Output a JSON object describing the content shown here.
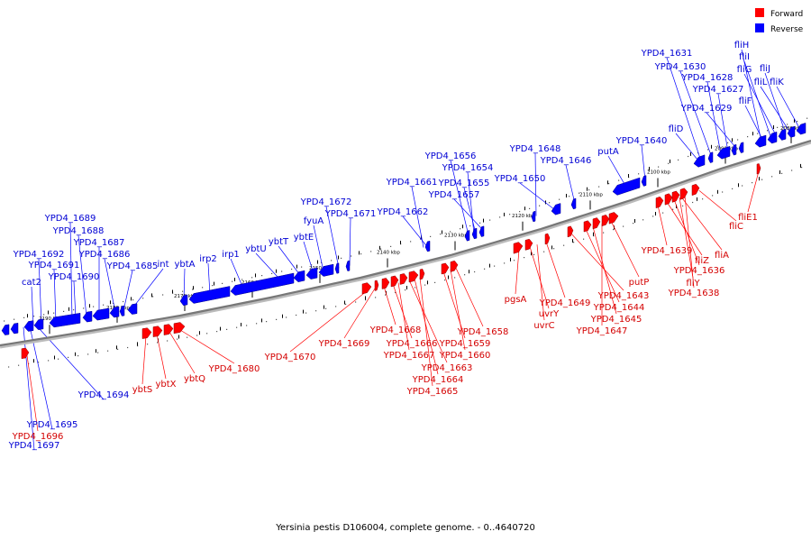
{
  "caption": "Yersinia pestis D106004, complete genome. - 0..4640720",
  "colors": {
    "forward": "#ff0000",
    "reverse": "#0000ff",
    "forward_label": "#d40000",
    "reverse_label": "#0000d4",
    "axis": "#777777"
  },
  "legend": [
    {
      "label": "Forward",
      "strand": "forward"
    },
    {
      "label": "Reverse",
      "strand": "reverse"
    }
  ],
  "ticks": [
    "2190 kbp",
    "2180 kbp",
    "2170 kbp",
    "2160 kbp",
    "2150 kbp",
    "2140 kbp",
    "2130 kbp",
    "2120 kbp",
    "2110 kbp",
    "2100 kbp",
    "2090 kbp",
    "2080 kbp",
    "2070 kbp"
  ],
  "reverse_labels": [
    "cat2",
    "YPD4_1692",
    "YPD4_1691",
    "YPD4_1690",
    "YPD4_1689",
    "YPD4_1688",
    "YPD4_1687",
    "YPD4_1686",
    "YPD4_1685",
    "int",
    "ybtA",
    "irp2",
    "irp1",
    "ybtU",
    "ybtT",
    "ybtE",
    "fyuA",
    "YPD4_1672",
    "YPD4_1671",
    "YPD4_1662",
    "YPD4_1661",
    "YPD4_1656",
    "YPD4_1654",
    "YPD4_1655",
    "YPD4_1657",
    "YPD4_1648",
    "YPD4_1650",
    "YPD4_1646",
    "putA",
    "YPD4_1640",
    "fliD",
    "YPD4_1631",
    "YPD4_1630",
    "YPD4_1628",
    "YPD4_1627",
    "YPD4_1629",
    "fliH",
    "fliI",
    "fliG",
    "fliJ",
    "fliF",
    "fliL",
    "fliK",
    "YPD4_1694",
    "YPD4_1695",
    "YPD4_1697"
  ],
  "forward_labels": [
    "YPD4_1696",
    "ybtS",
    "ybtX",
    "ybtQ",
    "YPD4_1680",
    "YPD4_1670",
    "YPD4_1669",
    "YPD4_1668",
    "YPD4_1666",
    "YPD4_1667",
    "YPD4_1663",
    "YPD4_1664",
    "YPD4_1665",
    "YPD4_1659",
    "YPD4_1660",
    "YPD4_1658",
    "pgsA",
    "uvrY",
    "uvrC",
    "YPD4_1649",
    "YPD4_1643",
    "YPD4_1644",
    "YPD4_1645",
    "YPD4_1647",
    "putP",
    "YPD4_1639",
    "fliZ",
    "fliA",
    "YPD4_1636",
    "fliY",
    "YPD4_1638",
    "fliC",
    "fliE1"
  ]
}
